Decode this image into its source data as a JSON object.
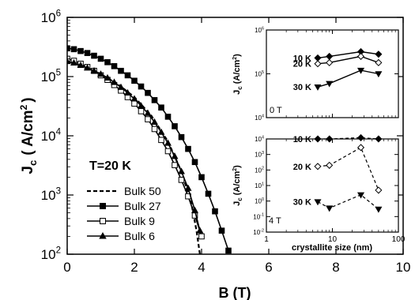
{
  "chart_data": [
    {
      "type": "line",
      "xlabel": "B (T)",
      "ylabel": "J_c (A/cm^2)",
      "ylabel_main": "J",
      "ylabel_sub": "c",
      "ylabel_units": "( A/cm",
      "ylabel_sup": "2",
      "ylabel_close": ")",
      "xlim": [
        0,
        10
      ],
      "ylim": [
        100,
        1000000
      ],
      "yscale": "log",
      "xticks": [
        "0",
        "2",
        "4",
        "6",
        "8",
        "10"
      ],
      "yticks": [
        {
          "base": "10",
          "exp": "2"
        },
        {
          "base": "10",
          "exp": "3"
        },
        {
          "base": "10",
          "exp": "4"
        },
        {
          "base": "10",
          "exp": "5"
        },
        {
          "base": "10",
          "exp": "6"
        }
      ],
      "annotation": "T=20 K",
      "legend_position": "bottom-left",
      "series": [
        {
          "name": "Bulk 50",
          "style": "dashed",
          "marker": "none",
          "x": [
            0,
            0.5,
            1,
            1.5,
            2,
            2.5,
            3,
            3.4,
            3.7,
            3.85,
            3.95
          ],
          "y": [
            180000,
            150000,
            110000,
            75000,
            45000,
            22000,
            8000,
            2500,
            700,
            250,
            100
          ]
        },
        {
          "name": "Bulk 27",
          "style": "solid",
          "marker": "square-filled",
          "x": [
            0,
            0.2,
            0.4,
            0.6,
            0.8,
            1,
            1.2,
            1.4,
            1.6,
            1.8,
            2,
            2.2,
            2.4,
            2.6,
            2.8,
            3,
            3.2,
            3.4,
            3.6,
            3.8,
            4,
            4.2,
            4.4,
            4.6,
            4.8
          ],
          "y": [
            300000,
            290000,
            270000,
            250000,
            225000,
            200000,
            175000,
            150000,
            125000,
            105000,
            85000,
            68000,
            53000,
            40000,
            30000,
            21000,
            14500,
            9500,
            6000,
            3600,
            2000,
            1050,
            530,
            250,
            115
          ]
        },
        {
          "name": "Bulk 9",
          "style": "solid",
          "marker": "square-open",
          "x": [
            0,
            0.2,
            0.4,
            0.6,
            0.8,
            1,
            1.2,
            1.4,
            1.6,
            1.8,
            2,
            2.2,
            2.4,
            2.6,
            2.8,
            3,
            3.2,
            3.4,
            3.6,
            3.8,
            4
          ],
          "y": [
            200000,
            185000,
            165000,
            145000,
            125000,
            105000,
            88000,
            72000,
            58000,
            45000,
            35000,
            26000,
            19000,
            13000,
            8500,
            5500,
            3200,
            1800,
            950,
            450,
            200
          ]
        },
        {
          "name": "Bulk 6",
          "style": "solid",
          "marker": "triangle-up-filled",
          "x": [
            0,
            0.2,
            0.4,
            0.6,
            0.8,
            1,
            1.2,
            1.4,
            1.6,
            1.8,
            2,
            2.2,
            2.4,
            2.6,
            2.8,
            3,
            3.2,
            3.4,
            3.6,
            3.8,
            3.95
          ],
          "y": [
            180000,
            170000,
            155000,
            140000,
            125000,
            110000,
            95000,
            80000,
            66000,
            53000,
            42000,
            32000,
            24000,
            17000,
            11500,
            7500,
            4500,
            2500,
            1300,
            550,
            250
          ]
        }
      ]
    },
    {
      "type": "line",
      "annotation": "0 T",
      "ylabel_main": "J",
      "ylabel_sub": "c",
      "ylabel_units": "(A/cm",
      "ylabel_sup": "2",
      "ylabel_close": ")",
      "xscale": "log",
      "yscale": "log",
      "xlim": [
        1,
        100
      ],
      "ylim": [
        10000,
        1000000
      ],
      "yticks": [
        {
          "base": "10",
          "exp": "4"
        },
        {
          "base": "10",
          "exp": "5"
        },
        {
          "base": "10",
          "exp": "6"
        }
      ],
      "x": [
        6,
        9,
        27,
        50
      ],
      "series": [
        {
          "name": "10 K",
          "marker": "diamond-filled",
          "style": "solid",
          "y": [
            230000,
            250000,
            320000,
            280000
          ]
        },
        {
          "name": "20 K",
          "marker": "diamond-open",
          "style": "solid",
          "y": [
            170000,
            180000,
            250000,
            180000
          ]
        },
        {
          "name": "30 K",
          "marker": "triangle-down-filled",
          "style": "solid",
          "y": [
            50000,
            60000,
            120000,
            100000
          ]
        }
      ]
    },
    {
      "type": "line",
      "annotation": "4 T",
      "ylabel_main": "J",
      "ylabel_sub": "c",
      "ylabel_units": "(A/cm",
      "ylabel_sup": "2",
      "ylabel_close": ")",
      "xlabel": "crystallite size (nm)",
      "xscale": "log",
      "yscale": "log",
      "xlim": [
        1,
        100
      ],
      "ylim": [
        0.01,
        10000
      ],
      "xticks": [
        "1",
        "10",
        "100"
      ],
      "yticks": [
        {
          "base": "10",
          "exp": "-2"
        },
        {
          "base": "10",
          "exp": "-1"
        },
        {
          "base": "10",
          "exp": "0"
        },
        {
          "base": "10",
          "exp": "1"
        },
        {
          "base": "10",
          "exp": "2"
        },
        {
          "base": "10",
          "exp": "3"
        },
        {
          "base": "10",
          "exp": "4"
        }
      ],
      "x": [
        6,
        9,
        27,
        50
      ],
      "series": [
        {
          "name": "10 K",
          "marker": "diamond-filled",
          "style": "dashed",
          "y": [
            10000,
            10000,
            12000,
            10000
          ]
        },
        {
          "name": "20 K",
          "marker": "diamond-open",
          "style": "dashed",
          "y": [
            170,
            200,
            2800,
            5
          ]
        },
        {
          "name": "30 K",
          "marker": "triangle-down-filled",
          "style": "dashed",
          "y": [
            0.9,
            0.35,
            2.5,
            0.3
          ]
        }
      ]
    }
  ]
}
